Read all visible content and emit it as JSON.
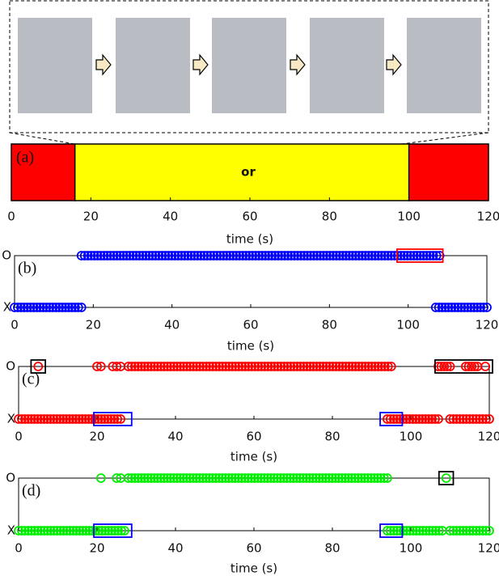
{
  "chart_data": [
    {
      "type": "timeline-bar",
      "label": "(a)",
      "annotation": "or",
      "segments": [
        {
          "color": "#ff0000",
          "range": [
            0,
            16
          ]
        },
        {
          "color": "#ffff00",
          "range": [
            16,
            100
          ]
        },
        {
          "color": "#ff0000",
          "range": [
            100,
            120
          ]
        }
      ],
      "xlim": [
        0,
        120
      ],
      "xticks": [
        0,
        20,
        40,
        60,
        80,
        100,
        120
      ],
      "xlabel": "time (s)"
    },
    {
      "type": "event-scatter",
      "label": "(b)",
      "rows": [
        "O",
        "X"
      ],
      "color": "#0000ff",
      "series": [
        {
          "row": 0,
          "intervals": [
            [
              17,
              108
            ]
          ]
        },
        {
          "row": 1,
          "intervals": [
            [
              0,
              17
            ],
            [
              107,
              120
            ]
          ]
        }
      ],
      "highlights": [
        {
          "row": 0,
          "range": [
            98,
            108
          ],
          "color": "#ff0000"
        }
      ],
      "xlim": [
        0,
        120
      ],
      "xticks": [
        0,
        20,
        40,
        60,
        80,
        100,
        120
      ],
      "xlabel": "time (s)"
    },
    {
      "type": "event-scatter",
      "label": "(c)",
      "rows": [
        "O",
        "X"
      ],
      "color": "#ff0000",
      "series": [
        {
          "row": 0,
          "intervals": [
            [
              5,
              5
            ],
            [
              20,
              21
            ],
            [
              24,
              26
            ],
            [
              28,
              95
            ],
            [
              107,
              110
            ],
            [
              114,
              117
            ],
            [
              119,
              119
            ]
          ]
        },
        {
          "row": 1,
          "intervals": [
            [
              0,
              26
            ],
            [
              94,
              107
            ],
            [
              110,
              120
            ]
          ]
        }
      ],
      "highlights": [
        {
          "row": 0,
          "range": [
            4,
            6
          ],
          "color": "#000000"
        },
        {
          "row": 0,
          "range": [
            107,
            120
          ],
          "color": "#000000"
        },
        {
          "row": 1,
          "range": [
            20,
            28
          ],
          "color": "#0000ff"
        },
        {
          "row": 1,
          "range": [
            93,
            97
          ],
          "color": "#0000ff"
        }
      ],
      "xlim": [
        0,
        120
      ],
      "xticks": [
        0,
        20,
        40,
        60,
        80,
        100,
        120
      ],
      "xlabel": "time (s)"
    },
    {
      "type": "event-scatter",
      "label": "(d)",
      "rows": [
        "O",
        "X"
      ],
      "color": "#00ee00",
      "series": [
        {
          "row": 0,
          "intervals": [
            [
              21,
              21
            ],
            [
              25,
              26
            ],
            [
              28,
              94
            ],
            [
              109,
              109
            ]
          ]
        },
        {
          "row": 1,
          "intervals": [
            [
              0,
              27
            ],
            [
              94,
              108
            ],
            [
              110,
              120
            ]
          ]
        }
      ],
      "highlights": [
        {
          "row": 0,
          "range": [
            108,
            110
          ],
          "color": "#000000"
        },
        {
          "row": 1,
          "range": [
            20,
            28
          ],
          "color": "#0000ff"
        },
        {
          "row": 1,
          "range": [
            93,
            97
          ],
          "color": "#0000ff"
        }
      ],
      "xlim": [
        0,
        120
      ],
      "xticks": [
        0,
        20,
        40,
        60,
        80,
        100,
        120
      ],
      "xlabel": "time (s)"
    }
  ]
}
